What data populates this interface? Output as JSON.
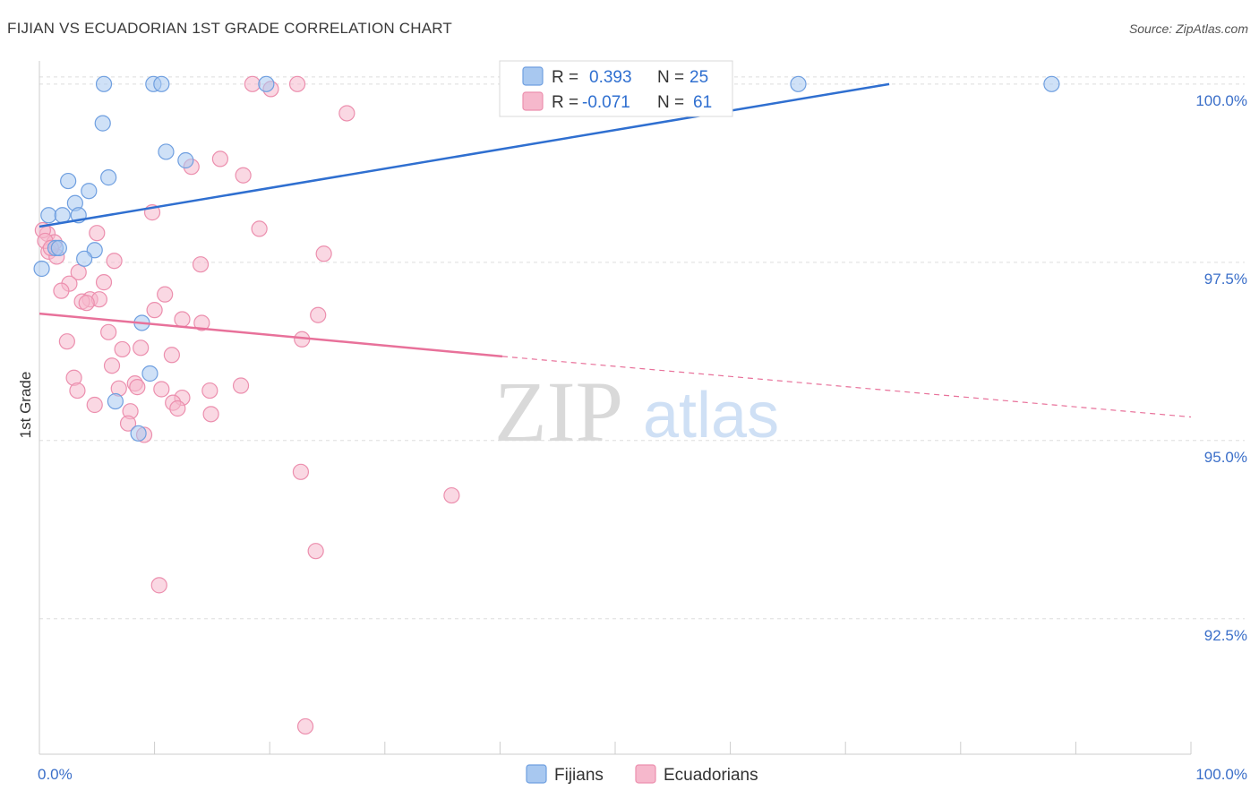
{
  "header": {
    "title": "FIJIAN VS ECUADORIAN 1ST GRADE CORRELATION CHART",
    "source": "Source: ZipAtlas.com"
  },
  "watermark": {
    "zip": "ZIP",
    "atlas": "atlas"
  },
  "legend_box": {
    "rows": [
      {
        "r_label": "R =",
        "r_value": "0.393",
        "n_label": "N =",
        "n_value": "25"
      },
      {
        "r_label": "R =",
        "r_value": "-0.071",
        "n_label": "N =",
        "n_value": "61"
      }
    ]
  },
  "chart_data": {
    "type": "scatter",
    "title": "FIJIAN VS ECUADORIAN 1ST GRADE CORRELATION CHART",
    "ylabel": "1st Grade",
    "xlabel": "",
    "xlim": [
      0,
      100
    ],
    "ylim": [
      90.6,
      100.4
    ],
    "x_tick_labels": [
      "0.0%",
      "100.0%"
    ],
    "y_ticks": [
      92.5,
      95.0,
      97.5,
      100.0
    ],
    "y_tick_labels": [
      "92.5%",
      "95.0%",
      "97.5%",
      "100.0%"
    ],
    "grid": true,
    "legend_position": "top-center",
    "colors": {
      "fijians_fill": "#a8c8f0",
      "fijians_stroke": "#6f9fe0",
      "fijians_line": "#2f6fd0",
      "ecuadorians_fill": "#f6b8cc",
      "ecuadorians_stroke": "#ec8fae",
      "ecuadorians_line": "#e8719a",
      "axis_label": "#3b6fc9",
      "grid": "#dddddd"
    },
    "series": [
      {
        "name": "Fijians",
        "r": 0.393,
        "n": 25,
        "trend": {
          "x": [
            0,
            73.8
          ],
          "y": [
            98.0,
            100.0
          ]
        },
        "points": [
          {
            "x": 5.6,
            "y": 100.0
          },
          {
            "x": 9.9,
            "y": 100.0
          },
          {
            "x": 10.6,
            "y": 100.0
          },
          {
            "x": 19.7,
            "y": 100.0
          },
          {
            "x": 65.9,
            "y": 100.0
          },
          {
            "x": 87.9,
            "y": 100.0
          },
          {
            "x": 5.5,
            "y": 99.45
          },
          {
            "x": 11.0,
            "y": 99.05
          },
          {
            "x": 12.7,
            "y": 98.93
          },
          {
            "x": 2.5,
            "y": 98.64
          },
          {
            "x": 6.0,
            "y": 98.69
          },
          {
            "x": 4.3,
            "y": 98.5
          },
          {
            "x": 3.1,
            "y": 98.33
          },
          {
            "x": 0.8,
            "y": 98.16
          },
          {
            "x": 2.0,
            "y": 98.16
          },
          {
            "x": 3.4,
            "y": 98.16
          },
          {
            "x": 1.4,
            "y": 97.7
          },
          {
            "x": 4.8,
            "y": 97.67
          },
          {
            "x": 1.7,
            "y": 97.7
          },
          {
            "x": 3.9,
            "y": 97.55
          },
          {
            "x": 0.2,
            "y": 97.41
          },
          {
            "x": 8.9,
            "y": 96.65
          },
          {
            "x": 9.6,
            "y": 95.94
          },
          {
            "x": 6.6,
            "y": 95.55
          },
          {
            "x": 8.6,
            "y": 95.1
          }
        ]
      },
      {
        "name": "Ecuadorians",
        "r": -0.071,
        "n": 61,
        "trend": {
          "x": [
            0,
            40.2
          ],
          "y": [
            96.78,
            96.18
          ]
        },
        "trend_dashed": {
          "x": [
            40.2,
            100
          ],
          "y": [
            96.18,
            95.33
          ]
        },
        "points": [
          {
            "x": 18.5,
            "y": 100.0
          },
          {
            "x": 22.4,
            "y": 100.0
          },
          {
            "x": 20.1,
            "y": 99.93
          },
          {
            "x": 26.7,
            "y": 99.59
          },
          {
            "x": 15.7,
            "y": 98.95
          },
          {
            "x": 13.2,
            "y": 98.84
          },
          {
            "x": 17.7,
            "y": 98.72
          },
          {
            "x": 9.8,
            "y": 98.2
          },
          {
            "x": 19.1,
            "y": 97.97
          },
          {
            "x": 5.0,
            "y": 97.91
          },
          {
            "x": 0.7,
            "y": 97.9
          },
          {
            "x": 1.3,
            "y": 97.78
          },
          {
            "x": 0.8,
            "y": 97.65
          },
          {
            "x": 1.5,
            "y": 97.58
          },
          {
            "x": 24.7,
            "y": 97.62
          },
          {
            "x": 6.5,
            "y": 97.52
          },
          {
            "x": 14.0,
            "y": 97.47
          },
          {
            "x": 3.4,
            "y": 97.36
          },
          {
            "x": 5.6,
            "y": 97.22
          },
          {
            "x": 2.6,
            "y": 97.2
          },
          {
            "x": 1.9,
            "y": 97.1
          },
          {
            "x": 10.9,
            "y": 97.05
          },
          {
            "x": 4.4,
            "y": 96.98
          },
          {
            "x": 5.2,
            "y": 96.98
          },
          {
            "x": 3.7,
            "y": 96.95
          },
          {
            "x": 4.1,
            "y": 96.93
          },
          {
            "x": 10.0,
            "y": 96.83
          },
          {
            "x": 24.2,
            "y": 96.76
          },
          {
            "x": 12.4,
            "y": 96.7
          },
          {
            "x": 14.1,
            "y": 96.65
          },
          {
            "x": 6.0,
            "y": 96.52
          },
          {
            "x": 2.4,
            "y": 96.39
          },
          {
            "x": 22.8,
            "y": 96.42
          },
          {
            "x": 7.2,
            "y": 96.28
          },
          {
            "x": 8.8,
            "y": 96.3
          },
          {
            "x": 11.5,
            "y": 96.2
          },
          {
            "x": 6.3,
            "y": 96.05
          },
          {
            "x": 3.0,
            "y": 95.88
          },
          {
            "x": 8.3,
            "y": 95.8
          },
          {
            "x": 6.9,
            "y": 95.73
          },
          {
            "x": 8.5,
            "y": 95.75
          },
          {
            "x": 10.6,
            "y": 95.72
          },
          {
            "x": 17.5,
            "y": 95.77
          },
          {
            "x": 3.3,
            "y": 95.7
          },
          {
            "x": 14.8,
            "y": 95.7
          },
          {
            "x": 12.4,
            "y": 95.6
          },
          {
            "x": 11.6,
            "y": 95.53
          },
          {
            "x": 4.8,
            "y": 95.5
          },
          {
            "x": 12.0,
            "y": 95.45
          },
          {
            "x": 7.9,
            "y": 95.41
          },
          {
            "x": 14.9,
            "y": 95.37
          },
          {
            "x": 7.7,
            "y": 95.24
          },
          {
            "x": 9.1,
            "y": 95.08
          },
          {
            "x": 22.7,
            "y": 94.56
          },
          {
            "x": 35.8,
            "y": 94.23
          },
          {
            "x": 24.0,
            "y": 93.45
          },
          {
            "x": 10.4,
            "y": 92.97
          },
          {
            "x": 23.1,
            "y": 90.99
          },
          {
            "x": 0.3,
            "y": 97.95
          },
          {
            "x": 0.5,
            "y": 97.8
          },
          {
            "x": 1.0,
            "y": 97.7
          }
        ]
      }
    ]
  },
  "bottom_legend": {
    "items": [
      "Fijians",
      "Ecuadorians"
    ]
  }
}
